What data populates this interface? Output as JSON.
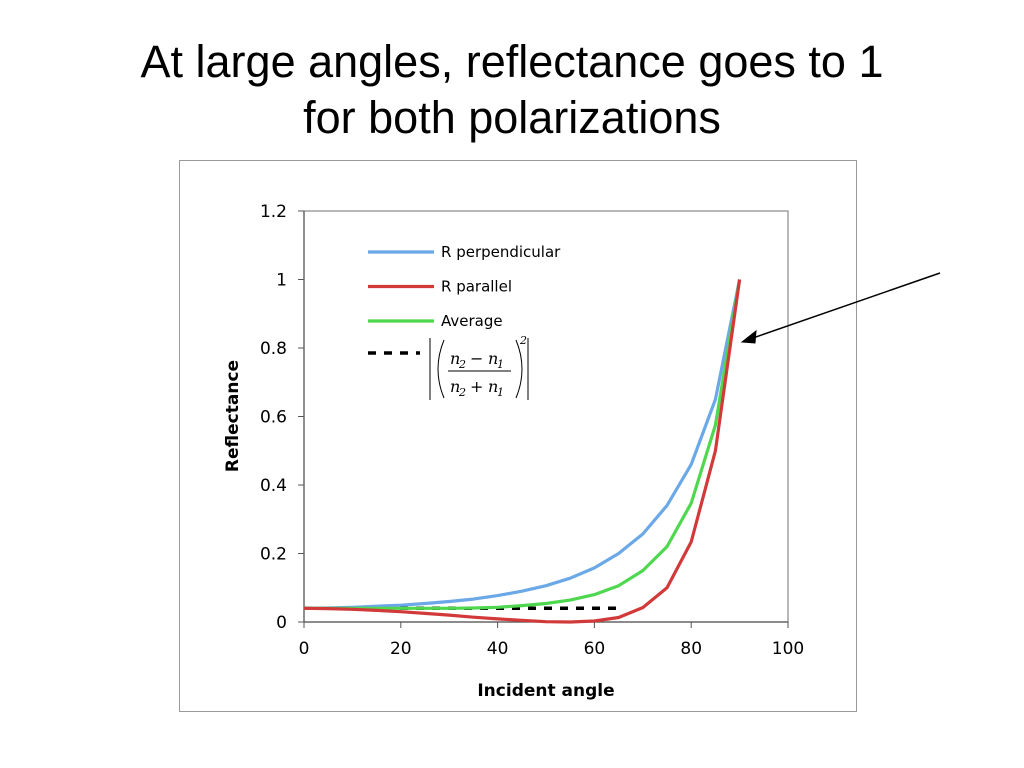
{
  "slide": {
    "title_line1": "At large angles, reflectance goes to 1",
    "title_line2": "for both polarizations"
  },
  "chart_data": {
    "type": "line",
    "xlabel": "Incident angle",
    "ylabel": "Reflectance",
    "xlim": [
      0,
      100
    ],
    "ylim": [
      0,
      1.2
    ],
    "xticks": [
      0,
      20,
      40,
      60,
      80,
      100
    ],
    "yticks": [
      0,
      0.2,
      0.4,
      0.6,
      0.8,
      1,
      1.2
    ],
    "ytick_labels": [
      "0",
      "0.2",
      "0.4",
      "0.6",
      "0.8",
      "1",
      "1.2"
    ],
    "grid": false,
    "legend_position": "top-left",
    "series": [
      {
        "name": "R perpendicular",
        "color": "#6aa8e8",
        "x": [
          0,
          5,
          10,
          15,
          20,
          25,
          30,
          35,
          40,
          45,
          50,
          55,
          60,
          65,
          70,
          75,
          80,
          85,
          90
        ],
        "y": [
          0.04,
          0.041,
          0.043,
          0.046,
          0.049,
          0.054,
          0.06,
          0.067,
          0.077,
          0.09,
          0.106,
          0.128,
          0.158,
          0.2,
          0.257,
          0.34,
          0.46,
          0.65,
          1.0
        ]
      },
      {
        "name": "R parallel",
        "color": "#d23a3a",
        "x": [
          0,
          5,
          10,
          15,
          20,
          25,
          30,
          35,
          40,
          45,
          50,
          55,
          60,
          65,
          70,
          75,
          80,
          85,
          90
        ],
        "y": [
          0.04,
          0.039,
          0.037,
          0.034,
          0.03,
          0.025,
          0.02,
          0.014,
          0.009,
          0.005,
          0.001,
          0.0,
          0.003,
          0.013,
          0.042,
          0.1,
          0.234,
          0.5,
          1.0
        ]
      },
      {
        "name": "Average",
        "color": "#4fd84f",
        "x": [
          0,
          5,
          10,
          15,
          20,
          25,
          30,
          35,
          40,
          45,
          50,
          55,
          60,
          65,
          70,
          75,
          80,
          85,
          90
        ],
        "y": [
          0.04,
          0.04,
          0.04,
          0.04,
          0.04,
          0.04,
          0.04,
          0.041,
          0.043,
          0.048,
          0.054,
          0.064,
          0.08,
          0.106,
          0.15,
          0.22,
          0.347,
          0.575,
          1.0
        ]
      },
      {
        "style": "dashed",
        "color": "#000000",
        "x": [
          0,
          65
        ],
        "y": [
          0.04,
          0.04
        ]
      }
    ],
    "legend_formula": {
      "numerator_a": "n",
      "numerator_a_sub": "2",
      "numerator_op": "−",
      "numerator_b": "n",
      "numerator_b_sub": "1",
      "denominator_a": "n",
      "denominator_a_sub": "2",
      "denominator_op": "+",
      "denominator_b": "n",
      "denominator_b_sub": "1",
      "exponent": "2"
    }
  }
}
